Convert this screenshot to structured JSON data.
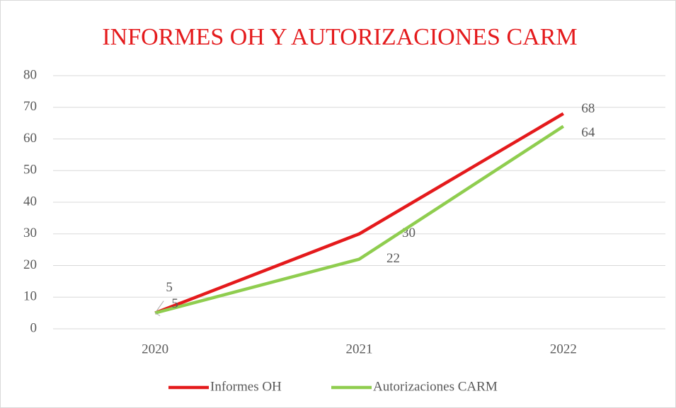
{
  "chart_data": {
    "type": "line",
    "title": "INFORMES OH Y AUTORIZACIONES CARM",
    "categories": [
      "2020",
      "2021",
      "2022"
    ],
    "series": [
      {
        "name": "Informes OH",
        "color": "#e41a1c",
        "values": [
          5,
          30,
          68
        ]
      },
      {
        "name": "Autorizaciones CARM",
        "color": "#8fcd4f",
        "values": [
          5,
          22,
          64
        ]
      }
    ],
    "ylim": [
      0,
      80
    ],
    "yticks": [
      0,
      10,
      20,
      30,
      40,
      50,
      60,
      70,
      80
    ],
    "grid": true,
    "legend": "bottom"
  }
}
